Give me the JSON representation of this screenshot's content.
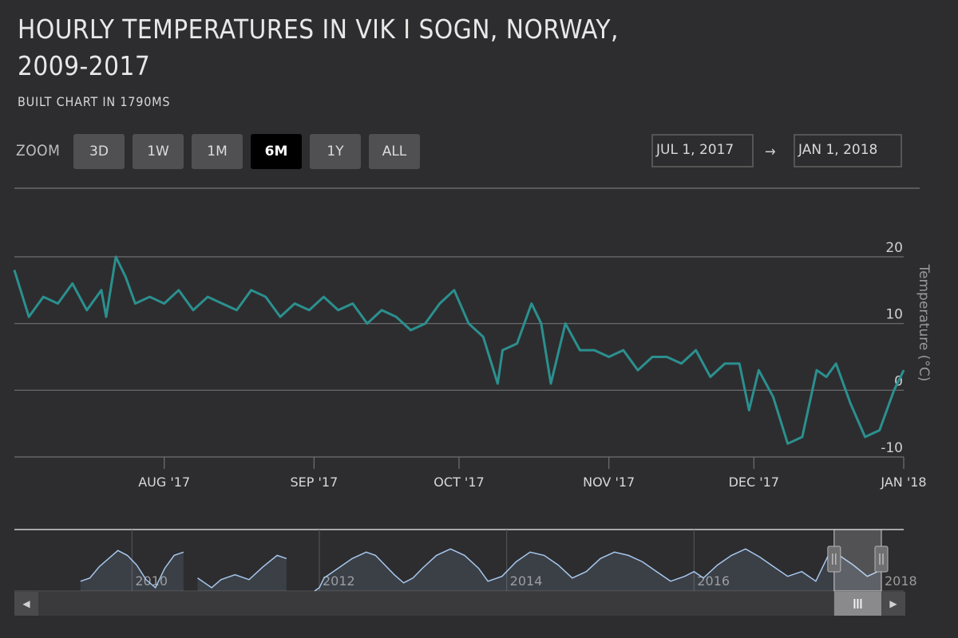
{
  "header": {
    "title": "HOURLY TEMPERATURES IN VIK I SOGN, NORWAY, 2009-2017",
    "subtitle": "BUILT CHART IN 1790MS"
  },
  "range_selector": {
    "zoom_label": "ZOOM",
    "buttons": [
      {
        "label": "3D",
        "active": false
      },
      {
        "label": "1W",
        "active": false
      },
      {
        "label": "1M",
        "active": false
      },
      {
        "label": "6M",
        "active": true
      },
      {
        "label": "1Y",
        "active": false
      },
      {
        "label": "ALL",
        "active": false
      }
    ],
    "from_date": "JUL 1, 2017",
    "to_date": "JAN 1, 2018",
    "arrow": "→"
  },
  "colors": {
    "background": "#2d2d2f",
    "series": "#2b908f",
    "navigator_line": "#a6c7ed",
    "grid": "#707073"
  },
  "chart_data": {
    "type": "line",
    "title": "HOURLY TEMPERATURES IN VIK I SOGN, NORWAY, 2009-2017",
    "subtitle": "BUILT CHART IN 1790MS",
    "ylabel": "Temperature (°C)",
    "y_axis_side": "right",
    "ylim": [
      -10,
      20
    ],
    "y_ticks": [
      "20",
      "10",
      "0",
      "-10"
    ],
    "xlim": [
      "2017-07-01",
      "2018-01-01"
    ],
    "x_ticks": [
      "AUG '17",
      "SEP '17",
      "OCT '17",
      "NOV '17",
      "DEC '17",
      "JAN '18"
    ],
    "x_tick_dates": [
      "2017-08-01",
      "2017-09-01",
      "2017-10-01",
      "2017-11-01",
      "2017-12-01",
      "2018-01-01"
    ],
    "grid": true,
    "legend": false,
    "series": [
      {
        "x": [
          "2017-07-01",
          "2017-07-04",
          "2017-07-07",
          "2017-07-10",
          "2017-07-13",
          "2017-07-16",
          "2017-07-19",
          "2017-07-20",
          "2017-07-22",
          "2017-07-24",
          "2017-07-26",
          "2017-07-29",
          "2017-08-01",
          "2017-08-04",
          "2017-08-07",
          "2017-08-10",
          "2017-08-13",
          "2017-08-16",
          "2017-08-19",
          "2017-08-22",
          "2017-08-25",
          "2017-08-28",
          "2017-08-31",
          "2017-09-03",
          "2017-09-06",
          "2017-09-09",
          "2017-09-12",
          "2017-09-15",
          "2017-09-18",
          "2017-09-21",
          "2017-09-24",
          "2017-09-27",
          "2017-09-30",
          "2017-10-03",
          "2017-10-06",
          "2017-10-09",
          "2017-10-10",
          "2017-10-13",
          "2017-10-16",
          "2017-10-18",
          "2017-10-20",
          "2017-10-23",
          "2017-10-26",
          "2017-10-29",
          "2017-11-01",
          "2017-11-04",
          "2017-11-07",
          "2017-11-10",
          "2017-11-13",
          "2017-11-16",
          "2017-11-19",
          "2017-11-22",
          "2017-11-25",
          "2017-11-28",
          "2017-11-30",
          "2017-12-02",
          "2017-12-05",
          "2017-12-08",
          "2017-12-11",
          "2017-12-14",
          "2017-12-16",
          "2017-12-18",
          "2017-12-21",
          "2017-12-24",
          "2017-12-27",
          "2017-12-30",
          "2018-01-01"
        ],
        "y": [
          18,
          11,
          14,
          13,
          16,
          12,
          15,
          11,
          20,
          17,
          13,
          14,
          13,
          15,
          12,
          14,
          13,
          12,
          15,
          14,
          11,
          13,
          12,
          14,
          12,
          13,
          10,
          12,
          11,
          9,
          10,
          13,
          15,
          10,
          8,
          1,
          6,
          7,
          13,
          10,
          1,
          10,
          6,
          6,
          5,
          6,
          3,
          5,
          5,
          4,
          6,
          2,
          4,
          4,
          -3,
          3,
          -1,
          -8,
          -7,
          3,
          2,
          4,
          -2,
          -7,
          -6,
          0,
          3
        ]
      }
    ]
  },
  "navigator": {
    "x_labels": [
      "2010",
      "2012",
      "2014",
      "2016",
      "2018"
    ],
    "x_label_years": [
      2010,
      2012,
      2014,
      2016,
      2018
    ],
    "year_range": [
      2009,
      2018
    ],
    "ylim": [
      -10,
      25
    ],
    "selection": {
      "from": "2017-07-01",
      "to": "2018-01-01"
    },
    "series": {
      "x": [
        2009.45,
        2009.55,
        2009.65,
        2009.75,
        2009.85,
        2009.95,
        2010.05,
        2010.15,
        2010.25,
        2010.35,
        2010.45,
        2010.55,
        2010.62,
        2010.7,
        2010.85,
        2010.95,
        2011.1,
        2011.25,
        2011.4,
        2011.55,
        2011.65,
        2011.75,
        2011.95,
        2012.0,
        2012.05,
        2012.2,
        2012.35,
        2012.5,
        2012.6,
        2012.7,
        2012.8,
        2012.9,
        2013.0,
        2013.1,
        2013.25,
        2013.4,
        2013.55,
        2013.7,
        2013.8,
        2013.95,
        2014.1,
        2014.25,
        2014.4,
        2014.55,
        2014.7,
        2014.85,
        2015.0,
        2015.15,
        2015.3,
        2015.45,
        2015.6,
        2015.75,
        2015.9,
        2016.0,
        2016.1,
        2016.25,
        2016.4,
        2016.55,
        2016.7,
        2016.85,
        2017.0,
        2017.15,
        2017.3,
        2017.45,
        2017.55,
        2017.7,
        2017.85,
        2018.0
      ],
      "y": [
        -4,
        -2,
        5,
        10,
        15,
        12,
        6,
        -3,
        -8,
        4,
        12,
        14,
        16,
        -2,
        -8,
        -3,
        0,
        -3,
        5,
        12,
        10,
        -5,
        -10,
        -8,
        -2,
        4,
        10,
        14,
        12,
        6,
        0,
        -5,
        -2,
        4,
        12,
        16,
        12,
        4,
        -4,
        -1,
        8,
        14,
        12,
        6,
        -2,
        2,
        10,
        14,
        12,
        8,
        2,
        -4,
        -1,
        2,
        -2,
        6,
        12,
        16,
        11,
        5,
        -1,
        2,
        -4,
        14,
        12,
        6,
        -1,
        3
      ],
      "gaps": [
        [
          2010.6,
          2010.7
        ],
        [
          2011.7,
          2011.9
        ]
      ]
    }
  },
  "icons": {
    "scroll_left": "triangle-left-icon",
    "scroll_right": "triangle-right-icon",
    "scrollbar_grip": "grip-lines-icon",
    "handle_grip": "grip-lines-icon"
  }
}
